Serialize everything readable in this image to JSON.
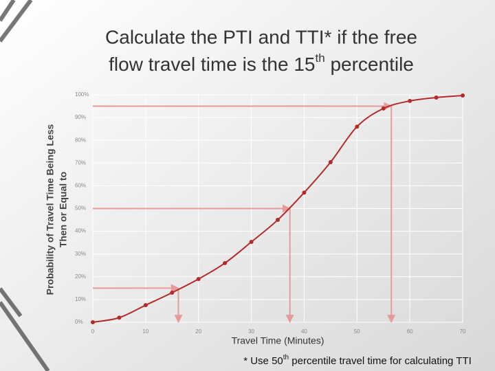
{
  "chart_data": {
    "type": "line",
    "title": {
      "line1": "Calculate the PTI and TTI* if the free",
      "line2": "flow travel time is the 15",
      "sup": "th",
      "tail": " percentile"
    },
    "xlabel": "Travel Time (Minutes)",
    "ylabel": [
      "Probability of Travel Time Being Less",
      "Then or Equal to"
    ],
    "footnote": {
      "text": "* Use 50",
      "sup": "th",
      "tail": " percentile travel time for calculating TTI"
    },
    "x": [
      0,
      5,
      10,
      15,
      20,
      25,
      30,
      35,
      40,
      45,
      50,
      55,
      60,
      65,
      70
    ],
    "values": [
      0,
      2,
      7.5,
      13,
      19,
      26,
      35.3,
      45,
      57,
      70.4,
      86,
      94,
      97.3,
      98.8,
      99.7
    ],
    "color": "#b22a2a",
    "references": [
      {
        "x": 16.2,
        "y": 15
      },
      {
        "x": 37.3,
        "y": 50
      },
      {
        "x": 56.5,
        "y": 95
      }
    ],
    "reference_color": "#e79a9a",
    "xlim": [
      0,
      70
    ],
    "xticks": [
      0,
      10,
      20,
      30,
      40,
      50,
      60,
      70
    ],
    "ylim": [
      0,
      100
    ],
    "yticks": [
      {
        "value": 0,
        "label": "0%"
      },
      {
        "value": 10,
        "label": "10%"
      },
      {
        "value": 20,
        "label": "20%"
      },
      {
        "value": 30,
        "label": "30%"
      },
      {
        "value": 40,
        "label": "40%"
      },
      {
        "value": 50,
        "label": "50%"
      },
      {
        "value": 60,
        "label": "60%"
      },
      {
        "value": 70,
        "label": "70%"
      },
      {
        "value": 80,
        "label": "80%"
      },
      {
        "value": 90,
        "label": "90%"
      },
      {
        "value": 100,
        "label": "100%"
      }
    ],
    "grid": true
  }
}
